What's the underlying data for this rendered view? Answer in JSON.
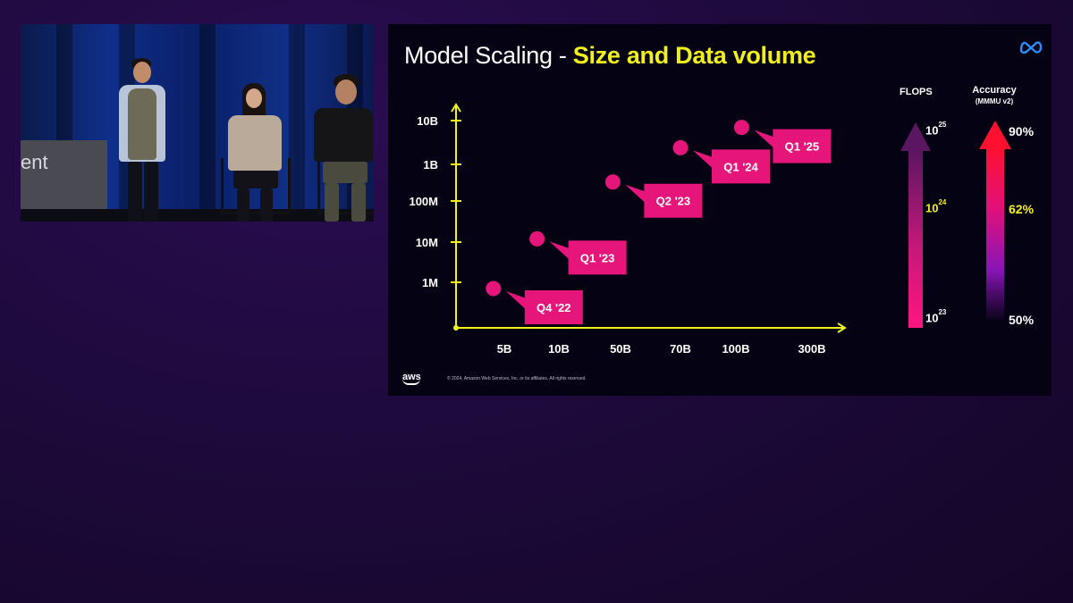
{
  "video": {
    "sign_text": "ent"
  },
  "slide": {
    "title_plain": "Model Scaling - ",
    "title_highlight": "Size and Data volume",
    "copyright": "© 2024, Amazon Web Services, Inc. or its affiliates. All rights reserved.",
    "aws_logo_text": "aws",
    "meta_logo_icon": "meta-infinity-logo",
    "flops": {
      "label": "FLOPS",
      "ticks": [
        {
          "base": "10",
          "exp": "25"
        },
        {
          "base": "10",
          "exp": "24"
        },
        {
          "base": "10",
          "exp": "23"
        }
      ]
    },
    "accuracy": {
      "label": "Accuracy",
      "sublabel": "(MMMU v2)",
      "ticks": [
        "90%",
        "62%",
        "50%"
      ]
    }
  },
  "chart_data": {
    "type": "scatter",
    "title": "Model Scaling - Size and Data volume",
    "x_tick_labels": [
      "5B",
      "10B",
      "50B",
      "70B",
      "100B",
      "300B"
    ],
    "y_tick_labels": [
      "1M",
      "10M",
      "100M",
      "1B",
      "10B"
    ],
    "points": [
      {
        "label": "Q4 '22",
        "x": 4,
        "y": 700000
      },
      {
        "label": "Q1 '23",
        "x": 8,
        "y": 12000000
      },
      {
        "label": "Q2 '23",
        "x": 45,
        "y": 330000000
      },
      {
        "label": "Q1 '24",
        "x": 70,
        "y": 2400000000
      },
      {
        "label": "Q1 '25",
        "x": 115,
        "y": 7000000000
      }
    ],
    "axis_color": "#f2f01a",
    "point_color": "#e5157a",
    "label_color": "#e5157a"
  }
}
